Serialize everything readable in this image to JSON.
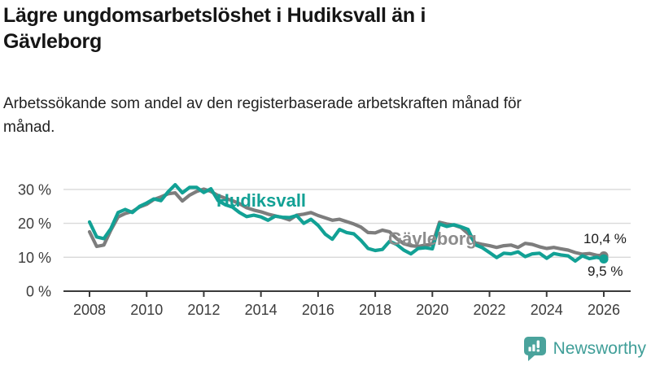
{
  "header": {
    "title": "Lägre ungdomsarbetslöshet i Hudiksvall än i Gävleborg",
    "subtitle": "Arbetssökande som andel av den registerbaserade arbetskraften månad för månad."
  },
  "footer": {
    "brand_name": "Newsworthy",
    "brand_color": "#3f9e98",
    "brand_icon": "speech-bubble-bar-chart-icon"
  },
  "chart_data": {
    "type": "line",
    "title": "Lägre ungdomsarbetslöshet i Hudiksvall än i Gävleborg",
    "xlabel": "",
    "ylabel": "",
    "grid": "horizontal",
    "legend_position": "inline-labels",
    "x_start": 2008.0,
    "x_step": 0.25,
    "xlim": [
      2007.1,
      2026.95
    ],
    "ylim": [
      0,
      33
    ],
    "x_ticks": [
      2008,
      2010,
      2012,
      2014,
      2016,
      2018,
      2020,
      2022,
      2024,
      2026
    ],
    "y_ticks": [
      {
        "value": 0,
        "label": "0 %"
      },
      {
        "value": 10,
        "label": "10 %"
      },
      {
        "value": 20,
        "label": "20 %"
      },
      {
        "value": 30,
        "label": "30 %"
      }
    ],
    "series": [
      {
        "name": "Gävleborg",
        "color": "#7d7d7d",
        "end_label": "10,4 %",
        "end_value": 10.4,
        "values": [
          17.5,
          13.2,
          13.6,
          18.0,
          21.9,
          22.9,
          23.5,
          24.8,
          25.6,
          27.0,
          27.8,
          28.7,
          29.0,
          26.6,
          28.3,
          29.4,
          30.1,
          29.4,
          28.2,
          27.4,
          26.7,
          25.8,
          24.6,
          23.9,
          23.4,
          22.7,
          22.2,
          21.7,
          21.0,
          22.4,
          22.7,
          23.2,
          22.3,
          21.6,
          20.9,
          21.2,
          20.5,
          19.8,
          18.9,
          17.3,
          17.2,
          18.0,
          17.5,
          15.5,
          14.0,
          13.4,
          13.2,
          13.6,
          13.8,
          20.3,
          19.8,
          19.5,
          18.8,
          17.0,
          14.3,
          13.8,
          13.4,
          12.9,
          13.4,
          13.6,
          12.9,
          14.1,
          13.8,
          13.1,
          12.6,
          12.9,
          12.5,
          12.1,
          11.4,
          10.9,
          11.1,
          10.6,
          10.4
        ]
      },
      {
        "name": "Hudiksvall",
        "color": "#12a195",
        "end_label": "9,5 %",
        "end_value": 9.5,
        "values": [
          20.4,
          16.0,
          15.5,
          18.5,
          23.2,
          24.1,
          23.2,
          25.0,
          26.0,
          27.2,
          26.7,
          29.3,
          31.4,
          29.0,
          30.6,
          30.6,
          29.1,
          30.2,
          26.7,
          25.5,
          24.8,
          23.2,
          22.0,
          22.4,
          21.9,
          20.9,
          22.1,
          21.8,
          21.7,
          22.3,
          20.0,
          21.2,
          19.4,
          16.8,
          15.3,
          18.2,
          17.3,
          16.9,
          15.0,
          12.6,
          12.0,
          12.3,
          14.7,
          13.8,
          12.1,
          11.0,
          12.6,
          12.8,
          12.5,
          19.8,
          19.1,
          19.6,
          19.0,
          18.2,
          13.7,
          12.8,
          11.4,
          9.9,
          11.2,
          11.0,
          11.6,
          10.2,
          11.0,
          11.2,
          9.7,
          11.1,
          10.7,
          10.4,
          8.9,
          10.4,
          9.6,
          10.0,
          9.5
        ]
      }
    ]
  }
}
